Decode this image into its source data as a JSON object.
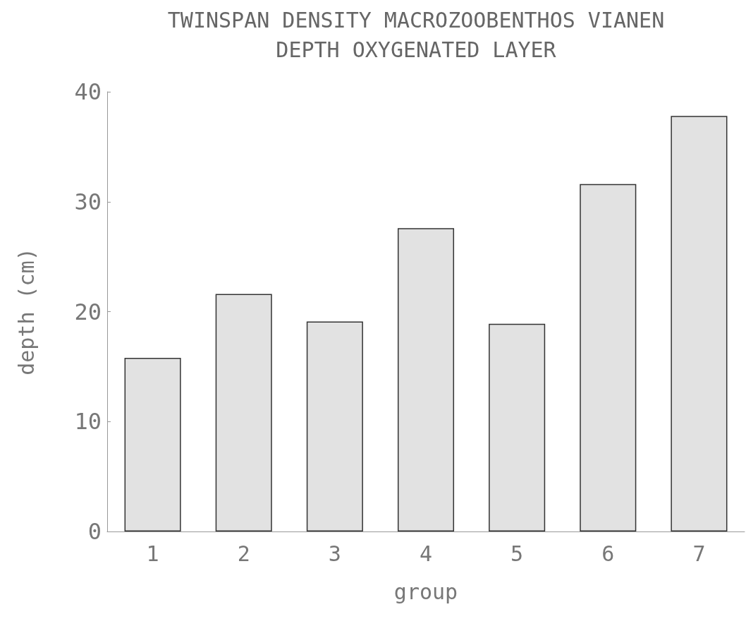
{
  "chart_data": {
    "type": "bar",
    "title": "TWINSPAN DENSITY MACROZOOBENTHOS VIANEN",
    "subtitle": "DEPTH OXYGENATED LAYER",
    "xlabel": "group",
    "ylabel": "depth (cm)",
    "categories": [
      "1",
      "2",
      "3",
      "4",
      "5",
      "6",
      "7"
    ],
    "values": [
      15.8,
      21.6,
      19.1,
      27.6,
      18.9,
      31.6,
      37.8
    ],
    "color": "#e2e2e2",
    "ylim": [
      0,
      40
    ],
    "yticks": [
      0,
      10,
      20,
      30,
      40
    ],
    "grid": false
  }
}
